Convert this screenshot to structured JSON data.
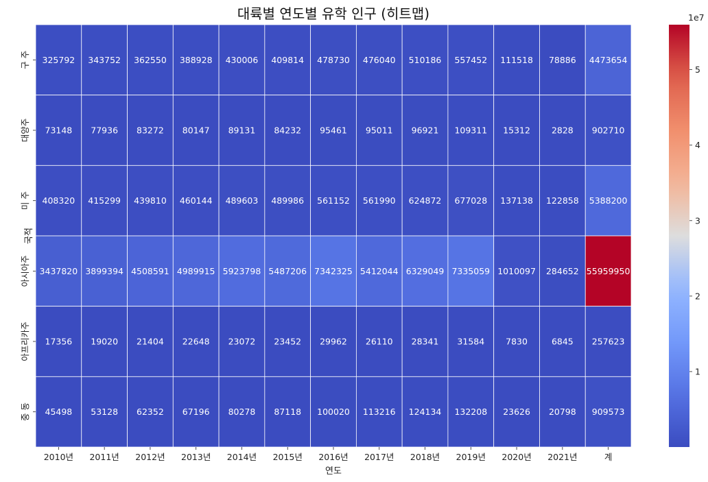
{
  "chart_data": {
    "type": "heatmap",
    "title": "대륙별 연도별 유학 인구 (히트맵)",
    "xlabel": "연도",
    "ylabel": "국적",
    "x_categories": [
      "2010년",
      "2011년",
      "2012년",
      "2013년",
      "2014년",
      "2015년",
      "2016년",
      "2017년",
      "2018년",
      "2019년",
      "2020년",
      "2021년",
      "계"
    ],
    "y_categories": [
      "구 주",
      "대양주",
      "미 주",
      "아시아주",
      "아프리카주",
      "중 동"
    ],
    "values": [
      [
        325792,
        343752,
        362550,
        388928,
        430006,
        409814,
        478730,
        476040,
        510186,
        557452,
        111518,
        78886,
        4473654
      ],
      [
        73148,
        77936,
        83272,
        80147,
        89131,
        84232,
        95461,
        95011,
        96921,
        109311,
        15312,
        2828,
        902710
      ],
      [
        408320,
        415299,
        439810,
        460144,
        489603,
        489986,
        561152,
        561990,
        624872,
        677028,
        137138,
        122858,
        5388200
      ],
      [
        3437820,
        3899394,
        4508591,
        4989915,
        5923798,
        5487206,
        7342325,
        5412044,
        6329049,
        7335059,
        1010097,
        284652,
        55959950
      ],
      [
        17356,
        19020,
        21404,
        22648,
        23072,
        23452,
        29962,
        26110,
        28341,
        31584,
        7830,
        6845,
        257623
      ],
      [
        45498,
        53128,
        62352,
        67196,
        80278,
        87118,
        100020,
        113216,
        124134,
        132208,
        23626,
        20798,
        909573
      ]
    ],
    "colormap": "coolwarm",
    "colorbar": {
      "min": 2828,
      "max": 55959950,
      "ticks": [
        1,
        2,
        3,
        4,
        5
      ],
      "multiplier_label": "1e7"
    },
    "grid_line_color": "#ffffff",
    "annotations": true
  }
}
